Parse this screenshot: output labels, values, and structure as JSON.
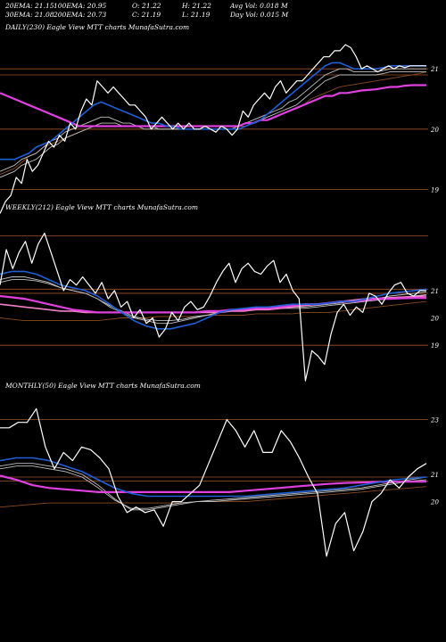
{
  "header": {
    "row1": [
      "20EMA: 21.15",
      "100EMA: 20.95",
      "O: 21.22",
      "H: 21.22",
      "Avg Vol: 0.018  M"
    ],
    "row2": [
      "30EMA: 21.08",
      "200EMA: 20.73",
      "C: 21.19",
      "L: 21.19",
      "Day Vol: 0.015 M"
    ]
  },
  "colors": {
    "background": "#000000",
    "price": "#ffffff",
    "ema_blue": "#1f5fd6",
    "ema_magenta": "#e040e0",
    "ema_pink": "#f080c8",
    "ema_gray": "#bfbfbf",
    "ema_brown": "#8b4a20",
    "grid": "#a0522d"
  },
  "chart_data": [
    {
      "type": "line",
      "title": "DAILY(230) Eagle  View  MTT charts MunafaSutra.com",
      "ylim": [
        18.8,
        21.55
      ],
      "y_ticks": [
        21,
        20,
        19
      ],
      "gridlines": [
        21.0,
        20.9,
        20.0,
        19.0
      ],
      "series": [
        {
          "role": "price",
          "values": [
            18.6,
            18.8,
            18.9,
            19.2,
            19.1,
            19.5,
            19.3,
            19.4,
            19.6,
            19.8,
            19.7,
            19.9,
            19.8,
            20.1,
            20.0,
            20.3,
            20.5,
            20.4,
            20.8,
            20.7,
            20.6,
            20.7,
            20.6,
            20.5,
            20.4,
            20.4,
            20.3,
            20.2,
            20.0,
            20.1,
            20.2,
            20.1,
            20.0,
            20.1,
            20.0,
            20.1,
            20.0,
            20.0,
            20.05,
            20.0,
            19.95,
            20.05,
            20.0,
            19.9,
            20.0,
            20.3,
            20.2,
            20.4,
            20.5,
            20.6,
            20.5,
            20.7,
            20.8,
            20.6,
            20.7,
            20.8,
            20.8,
            20.9,
            21.0,
            21.1,
            21.2,
            21.2,
            21.3,
            21.3,
            21.4,
            21.35,
            21.2,
            21.0,
            21.05,
            21.0,
            20.95,
            21.0,
            21.05,
            21.0,
            21.05,
            21.02,
            21.05,
            21.05,
            21.05,
            21.05
          ]
        },
        {
          "role": "ema_blue",
          "values": [
            19.5,
            19.5,
            19.5,
            19.55,
            19.6,
            19.7,
            19.75,
            19.8,
            19.9,
            20.0,
            20.1,
            20.2,
            20.3,
            20.4,
            20.45,
            20.4,
            20.35,
            20.3,
            20.25,
            20.2,
            20.15,
            20.1,
            20.1,
            20.05,
            20.05,
            20.0,
            20.0,
            20.0,
            20.0,
            20.0,
            20.0,
            20.0,
            20.0,
            20.0,
            20.05,
            20.1,
            20.15,
            20.25,
            20.35,
            20.45,
            20.55,
            20.65,
            20.75,
            20.85,
            20.95,
            21.05,
            21.1,
            21.1,
            21.05,
            21.0,
            21.0,
            21.0,
            21.0,
            21.02,
            21.05,
            21.05,
            21.05,
            21.05,
            21.05,
            21.05
          ]
        },
        {
          "role": "ema_gray",
          "values": [
            19.3,
            19.35,
            19.4,
            19.5,
            19.55,
            19.6,
            19.7,
            19.8,
            19.85,
            19.95,
            20.0,
            20.05,
            20.1,
            20.15,
            20.2,
            20.2,
            20.15,
            20.1,
            20.1,
            20.05,
            20.05,
            20.05,
            20.0,
            20.0,
            20.0,
            20.0,
            20.0,
            20.0,
            20.0,
            20.0,
            20.0,
            20.0,
            20.0,
            20.05,
            20.1,
            20.15,
            20.2,
            20.25,
            20.3,
            20.35,
            20.45,
            20.5,
            20.6,
            20.7,
            20.8,
            20.9,
            20.95,
            21.0,
            21.0,
            20.95,
            20.95,
            20.95,
            20.95,
            20.97,
            21.0,
            21.0,
            21.0,
            21.0,
            21.0,
            21.0
          ]
        },
        {
          "role": "ema_gray",
          "values": [
            19.2,
            19.25,
            19.3,
            19.4,
            19.45,
            19.5,
            19.6,
            19.7,
            19.75,
            19.85,
            19.9,
            19.95,
            20.0,
            20.05,
            20.1,
            20.1,
            20.1,
            20.05,
            20.05,
            20.05,
            20.0,
            20.0,
            20.0,
            20.0,
            20.0,
            20.0,
            20.0,
            20.0,
            20.0,
            20.0,
            20.0,
            20.0,
            20.0,
            20.0,
            20.05,
            20.1,
            20.15,
            20.2,
            20.25,
            20.3,
            20.35,
            20.4,
            20.5,
            20.6,
            20.7,
            20.8,
            20.85,
            20.9,
            20.9,
            20.9,
            20.9,
            20.9,
            20.9,
            20.92,
            20.95,
            20.95,
            20.95,
            20.95,
            20.95,
            20.95
          ]
        },
        {
          "role": "ema_magenta",
          "values": [
            20.6,
            20.55,
            20.5,
            20.45,
            20.4,
            20.35,
            20.3,
            20.25,
            20.2,
            20.15,
            20.1,
            20.05,
            20.05,
            20.05,
            20.05,
            20.05,
            20.05,
            20.05,
            20.05,
            20.05,
            20.05,
            20.05,
            20.05,
            20.05,
            20.05,
            20.05,
            20.05,
            20.05,
            20.05,
            20.05,
            20.05,
            20.05,
            20.05,
            20.05,
            20.1,
            20.1,
            20.15,
            20.15,
            20.2,
            20.25,
            20.3,
            20.35,
            20.4,
            20.45,
            20.5,
            20.55,
            20.55,
            20.6,
            20.6,
            20.62,
            20.64,
            20.65,
            20.66,
            20.68,
            20.7,
            20.7,
            20.72,
            20.73,
            20.73,
            20.73
          ]
        },
        {
          "role": "ema_brown",
          "values": [
            19.25,
            19.3,
            19.35,
            19.45,
            19.55,
            19.6,
            19.7,
            19.75,
            19.8,
            19.85,
            19.9,
            19.95,
            20.0,
            20.0,
            20.0,
            20.0,
            20.0,
            20.0,
            20.0,
            20.0,
            20.0,
            20.0,
            20.0,
            20.0,
            20.0,
            20.0,
            20.0,
            20.0,
            20.0,
            20.0,
            20.0,
            20.0,
            20.0,
            20.05,
            20.05,
            20.1,
            20.15,
            20.15,
            20.2,
            20.25,
            20.3,
            20.35,
            20.4,
            20.5,
            20.55,
            20.6,
            20.65,
            20.7,
            20.72,
            20.74,
            20.76,
            20.78,
            20.8,
            20.82,
            20.84,
            20.86,
            20.88,
            20.9,
            20.92,
            20.95
          ]
        }
      ]
    },
    {
      "type": "line",
      "title": "WEEKLY(212) Eagle  View  MTT charts MunafaSutra.com",
      "ylim": [
        17.8,
        23.8
      ],
      "y_ticks": [
        21,
        20,
        19
      ],
      "gridlines": [
        23.0,
        21.05,
        20.9,
        19.0
      ],
      "series": [
        {
          "role": "price",
          "values": [
            21.2,
            22.5,
            21.8,
            22.4,
            22.8,
            22.0,
            22.7,
            23.1,
            22.4,
            21.7,
            21.0,
            21.4,
            21.2,
            21.5,
            21.2,
            20.9,
            21.3,
            20.7,
            21.0,
            20.4,
            20.6,
            20.0,
            20.3,
            19.8,
            20.0,
            19.3,
            19.6,
            20.2,
            19.9,
            20.4,
            20.6,
            20.3,
            20.4,
            20.8,
            21.3,
            21.7,
            22.0,
            21.3,
            21.8,
            22.0,
            21.7,
            21.6,
            21.9,
            22.1,
            21.3,
            21.6,
            21.0,
            20.7,
            17.7,
            18.8,
            18.6,
            18.3,
            19.4,
            20.2,
            20.5,
            20.1,
            20.4,
            20.2,
            20.9,
            20.8,
            20.5,
            20.9,
            21.2,
            21.3,
            20.9,
            20.8,
            21.0,
            21.0
          ]
        },
        {
          "role": "ema_blue",
          "values": [
            21.6,
            21.7,
            21.7,
            21.6,
            21.4,
            21.2,
            21.1,
            21.0,
            20.8,
            20.5,
            20.2,
            19.9,
            19.7,
            19.6,
            19.6,
            19.7,
            19.8,
            20.0,
            20.2,
            20.3,
            20.35,
            20.4,
            20.4,
            20.45,
            20.5,
            20.5,
            20.5,
            20.55,
            20.6,
            20.6,
            20.7,
            20.8,
            20.9,
            20.95,
            21.0,
            21.05
          ]
        },
        {
          "role": "ema_gray",
          "values": [
            21.4,
            21.5,
            21.5,
            21.4,
            21.3,
            21.1,
            21.0,
            20.9,
            20.7,
            20.4,
            20.2,
            20.0,
            19.9,
            19.8,
            19.8,
            19.9,
            20.0,
            20.1,
            20.2,
            20.25,
            20.3,
            20.35,
            20.35,
            20.4,
            20.4,
            20.4,
            20.45,
            20.5,
            20.55,
            20.6,
            20.65,
            20.7,
            20.8,
            20.85,
            20.9,
            20.95
          ]
        },
        {
          "role": "ema_gray",
          "values": [
            21.3,
            21.4,
            21.4,
            21.35,
            21.25,
            21.1,
            21.0,
            20.9,
            20.7,
            20.45,
            20.25,
            20.05,
            19.95,
            19.9,
            19.9,
            19.95,
            20.05,
            20.1,
            20.2,
            20.25,
            20.3,
            20.3,
            20.3,
            20.35,
            20.35,
            20.35,
            20.4,
            20.45,
            20.5,
            20.55,
            20.6,
            20.65,
            20.7,
            20.75,
            20.8,
            20.85
          ]
        },
        {
          "role": "ema_magenta",
          "values": [
            20.8,
            20.75,
            20.7,
            20.6,
            20.5,
            20.4,
            20.3,
            20.25,
            20.2,
            20.2,
            20.2,
            20.2,
            20.2,
            20.2,
            20.2,
            20.2,
            20.2,
            20.25,
            20.25,
            20.3,
            20.3,
            20.35,
            20.35,
            20.4,
            20.45,
            20.5,
            20.5,
            20.55,
            20.6,
            20.6,
            20.65,
            20.7,
            20.7,
            20.72,
            20.73,
            20.73
          ]
        },
        {
          "role": "ema_pink",
          "values": [
            20.5,
            20.45,
            20.4,
            20.35,
            20.3,
            20.25,
            20.25,
            20.2,
            20.2,
            20.2,
            20.2,
            20.2,
            20.2,
            20.2,
            20.2,
            20.2,
            20.2,
            20.2,
            20.2,
            20.25,
            20.25,
            20.3,
            20.3,
            20.35,
            20.4,
            20.45,
            20.5,
            20.55,
            20.6,
            20.65,
            20.7,
            20.72,
            20.74,
            20.76,
            20.78,
            20.8
          ]
        },
        {
          "role": "ema_brown",
          "values": [
            20.0,
            19.95,
            19.9,
            19.9,
            19.9,
            19.9,
            19.9,
            19.9,
            19.9,
            19.95,
            20.0,
            20.0,
            20.0,
            20.05,
            20.05,
            20.05,
            20.05,
            20.1,
            20.1,
            20.1,
            20.1,
            20.15,
            20.15,
            20.15,
            20.15,
            20.2,
            20.2,
            20.2,
            20.25,
            20.3,
            20.35,
            20.4,
            20.45,
            20.5,
            20.55,
            20.6
          ]
        }
      ]
    },
    {
      "type": "line",
      "title": "MONTHLY(50) Eagle  View  MTT charts MunafaSutra.com",
      "ylim": [
        17.8,
        24.0
      ],
      "y_ticks": [
        23,
        21,
        20
      ],
      "gridlines": [
        23.0,
        20.9,
        20.75
      ],
      "series": [
        {
          "role": "price",
          "values": [
            22.7,
            22.7,
            22.9,
            22.9,
            23.4,
            22.0,
            21.2,
            21.8,
            21.5,
            22.0,
            21.9,
            21.6,
            21.2,
            20.2,
            19.6,
            19.8,
            19.6,
            19.7,
            19.1,
            20.0,
            20.0,
            20.3,
            20.6,
            21.4,
            22.2,
            23.0,
            22.6,
            22.0,
            22.6,
            21.8,
            21.8,
            22.6,
            22.2,
            21.6,
            20.9,
            20.3,
            18.0,
            19.2,
            19.6,
            18.2,
            18.9,
            20.0,
            20.3,
            20.8,
            20.5,
            20.9,
            21.2,
            21.4
          ]
        },
        {
          "role": "ema_blue",
          "values": [
            21.5,
            21.6,
            21.6,
            21.5,
            21.3,
            21.1,
            20.8,
            20.5,
            20.3,
            20.2,
            20.2,
            20.2,
            20.2,
            20.2,
            20.2,
            20.2,
            20.25,
            20.3,
            20.35,
            20.4,
            20.45,
            20.5,
            20.6,
            20.7,
            20.8,
            20.85,
            20.9
          ]
        },
        {
          "role": "ema_gray",
          "values": [
            21.3,
            21.4,
            21.4,
            21.3,
            21.2,
            21.0,
            20.6,
            20.1,
            19.7,
            19.7,
            19.8,
            19.9,
            20.0,
            20.05,
            20.1,
            20.15,
            20.2,
            20.25,
            20.3,
            20.35,
            20.4,
            20.45,
            20.5,
            20.6,
            20.7,
            20.8,
            20.9
          ]
        },
        {
          "role": "ema_gray",
          "values": [
            21.2,
            21.3,
            21.3,
            21.2,
            21.1,
            20.9,
            20.5,
            20.05,
            19.75,
            19.75,
            19.85,
            19.95,
            20.0,
            20.0,
            20.05,
            20.1,
            20.15,
            20.2,
            20.25,
            20.3,
            20.35,
            20.4,
            20.45,
            20.55,
            20.65,
            20.75,
            20.8
          ]
        },
        {
          "role": "ema_magenta",
          "values": [
            20.95,
            20.8,
            20.6,
            20.5,
            20.45,
            20.4,
            20.35,
            20.35,
            20.35,
            20.35,
            20.35,
            20.35,
            20.35,
            20.35,
            20.35,
            20.4,
            20.45,
            20.5,
            20.55,
            20.6,
            20.65,
            20.68,
            20.7,
            20.72,
            20.73,
            20.73,
            20.73
          ]
        },
        {
          "role": "ema_brown",
          "values": [
            19.8,
            19.85,
            19.9,
            19.95,
            19.95,
            19.95,
            19.95,
            19.95,
            19.95,
            19.95,
            19.95,
            19.95,
            20.0,
            20.0,
            20.0,
            20.0,
            20.05,
            20.1,
            20.15,
            20.2,
            20.25,
            20.3,
            20.35,
            20.4,
            20.45,
            20.5,
            20.55
          ]
        }
      ]
    }
  ]
}
